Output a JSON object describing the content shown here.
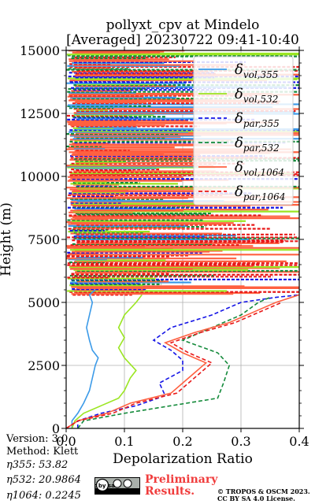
{
  "header": {
    "title_line1": "pollyxt_cpv at Mindelo",
    "title_line2": "[Averaged] 20230722 09:41-10:40"
  },
  "footer": {
    "version": "Version: 3.0",
    "method": "Method: Klett",
    "eta355": "η355:  53.82",
    "eta532": "η532: 20.9864",
    "eta1064": "η1064: 0.2245",
    "preliminary_line1": "Preliminary",
    "preliminary_line2": "Results.",
    "copyright_line1": "© TROPOS & OSCM 2023.",
    "copyright_line2": "CC BY SA 4.0 License.",
    "license_badge": "cc by sa"
  },
  "chart_data": {
    "type": "line",
    "title": "pollyxt_cpv at Mindelo [Averaged] 20230722 09:41-10:40",
    "xlabel": "Depolarization Ratio",
    "ylabel": "Height (m)",
    "xlim": [
      0,
      0.4
    ],
    "ylim": [
      0,
      15000
    ],
    "xticks": [
      "0.0",
      "0.1",
      "0.2",
      "0.3",
      "0.4"
    ],
    "yticks": [
      "0",
      "2500",
      "5000",
      "7500",
      "10000",
      "12500",
      "15000"
    ],
    "grid": true,
    "legend_position": "top-right",
    "series": [
      {
        "name": "δvol,355",
        "color": "#3b9ae8",
        "style": "solid",
        "points": [
          [
            0.01,
            0
          ],
          [
            0.01,
            300
          ],
          [
            0.02,
            600
          ],
          [
            0.03,
            1000
          ],
          [
            0.04,
            1500
          ],
          [
            0.045,
            2000
          ],
          [
            0.05,
            2500
          ],
          [
            0.055,
            2800
          ],
          [
            0.045,
            3100
          ],
          [
            0.04,
            3500
          ],
          [
            0.035,
            4000
          ],
          [
            0.04,
            4500
          ],
          [
            0.045,
            5000
          ],
          [
            0.04,
            5300
          ],
          [
            0.05,
            5500
          ]
        ]
      },
      {
        "name": "δvol,532",
        "color": "#9be622",
        "style": "solid",
        "points": [
          [
            0.01,
            0
          ],
          [
            0.015,
            300
          ],
          [
            0.03,
            600
          ],
          [
            0.06,
            900
          ],
          [
            0.09,
            1200
          ],
          [
            0.1,
            1500
          ],
          [
            0.11,
            2000
          ],
          [
            0.12,
            2300
          ],
          [
            0.1,
            2800
          ],
          [
            0.09,
            3200
          ],
          [
            0.1,
            3600
          ],
          [
            0.09,
            4000
          ],
          [
            0.1,
            4500
          ],
          [
            0.12,
            5000
          ],
          [
            0.13,
            5300
          ]
        ]
      },
      {
        "name": "δpar,355",
        "color": "#1414e6",
        "style": "dashed",
        "points": [
          [
            0.02,
            0
          ],
          [
            0.02,
            300
          ],
          [
            0.06,
            600
          ],
          [
            0.12,
            900
          ],
          [
            0.17,
            1300
          ],
          [
            0.16,
            1800
          ],
          [
            0.2,
            2300
          ],
          [
            0.2,
            2700
          ],
          [
            0.18,
            3100
          ],
          [
            0.15,
            3500
          ],
          [
            0.18,
            4000
          ],
          [
            0.25,
            4500
          ],
          [
            0.3,
            5000
          ],
          [
            0.36,
            5200
          ],
          [
            0.4,
            5300
          ]
        ]
      },
      {
        "name": "δpar,532",
        "color": "#138a3a",
        "style": "dashed",
        "points": [
          [
            0.02,
            0
          ],
          [
            0.03,
            300
          ],
          [
            0.1,
            600
          ],
          [
            0.18,
            900
          ],
          [
            0.26,
            1200
          ],
          [
            0.27,
            1800
          ],
          [
            0.28,
            2500
          ],
          [
            0.26,
            3000
          ],
          [
            0.2,
            3500
          ],
          [
            0.25,
            4000
          ],
          [
            0.3,
            4500
          ],
          [
            0.33,
            5000
          ],
          [
            0.35,
            5200
          ]
        ]
      },
      {
        "name": "δvol,1064",
        "color": "#ff6040",
        "style": "solid",
        "points": [
          [
            0.0,
            0
          ],
          [
            0.02,
            300
          ],
          [
            0.07,
            600
          ],
          [
            0.11,
            1000
          ],
          [
            0.18,
            1400
          ],
          [
            0.2,
            1800
          ],
          [
            0.22,
            2200
          ],
          [
            0.24,
            2600
          ],
          [
            0.2,
            3000
          ],
          [
            0.17,
            3400
          ],
          [
            0.22,
            3800
          ],
          [
            0.28,
            4200
          ],
          [
            0.32,
            4600
          ],
          [
            0.36,
            5000
          ],
          [
            0.4,
            5300
          ]
        ]
      },
      {
        "name": "δpar,1064",
        "color": "#e81818",
        "style": "dashed",
        "points": [
          [
            0.0,
            0
          ],
          [
            0.02,
            300
          ],
          [
            0.08,
            600
          ],
          [
            0.12,
            1000
          ],
          [
            0.19,
            1400
          ],
          [
            0.21,
            1800
          ],
          [
            0.23,
            2200
          ],
          [
            0.25,
            2600
          ],
          [
            0.21,
            3000
          ],
          [
            0.18,
            3400
          ],
          [
            0.23,
            3800
          ],
          [
            0.29,
            4200
          ],
          [
            0.33,
            4600
          ],
          [
            0.37,
            5000
          ]
        ]
      }
    ],
    "noise_region": {
      "from_height": 5300,
      "to_height": 15000,
      "dominant_color": "#ff6040"
    }
  }
}
